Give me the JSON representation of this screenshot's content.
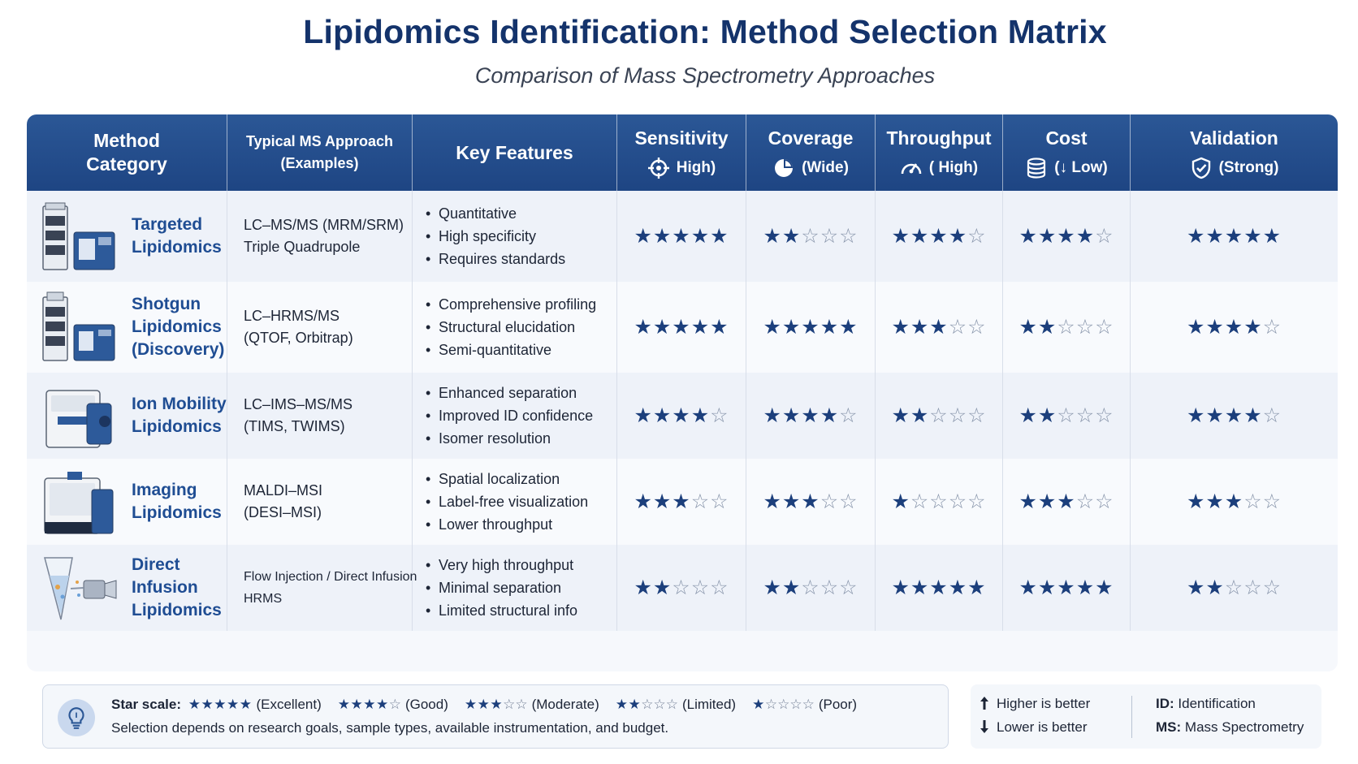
{
  "header": {
    "title": "Lipidomics Identification: Method Selection Matrix",
    "subtitle": "Comparison of Mass Spectrometry Approaches"
  },
  "columns": {
    "method": "Method\nCategory",
    "approach": "Typical MS Approach\n(Examples)",
    "features": "Key Features",
    "sensitivity": {
      "label": "Sensitivity",
      "note": "High)",
      "icon": "crosshair-icon"
    },
    "coverage": {
      "label": "Coverage",
      "note": "(Wide)",
      "icon": "pie-chart-icon"
    },
    "throughput": {
      "label": "Throughput",
      "note": "( High)",
      "icon": "speedometer-icon"
    },
    "cost": {
      "label": "Cost",
      "note": "(↓ Low)",
      "icon": "coins-stack-icon"
    },
    "validation": {
      "label": "Validation",
      "note": "(Strong)",
      "icon": "shield-check-icon"
    }
  },
  "rows": [
    {
      "name": "Targeted\nLipidomics",
      "icon": "lc-ms-instrument-icon",
      "approach": [
        "LC–MS/MS (MRM/SRM)",
        "Triple Quadrupole"
      ],
      "features": [
        "Quantitative",
        "High specificity",
        "Requires standards"
      ],
      "ratings": [
        5,
        2,
        4,
        4,
        5
      ]
    },
    {
      "name": "Shotgun\nLipidomics\n(Discovery)",
      "icon": "lc-hrms-instrument-icon",
      "approach": [
        "LC–HRMS/MS",
        "(QTOF, Orbitrap)"
      ],
      "features": [
        "Comprehensive profiling",
        "Structural elucidation",
        "Semi-quantitative"
      ],
      "ratings": [
        5,
        5,
        3,
        2,
        4
      ]
    },
    {
      "name": "Ion Mobility\nLipidomics",
      "icon": "ion-mobility-instrument-icon",
      "approach": [
        "LC–IMS–MS/MS",
        "(TIMS, TWIMS)"
      ],
      "features": [
        "Enhanced separation",
        "Improved ID confidence",
        "Isomer resolution"
      ],
      "ratings": [
        4,
        4,
        2,
        2,
        4
      ]
    },
    {
      "name": "Imaging\nLipidomics",
      "icon": "maldi-imaging-instrument-icon",
      "approach": [
        "MALDI–MSI",
        "(DESI–MSI)"
      ],
      "features": [
        "Spatial localization",
        "Label-free visualization",
        "Lower throughput"
      ],
      "ratings": [
        3,
        3,
        1,
        3,
        3
      ]
    },
    {
      "name": "Direct Infusion\nLipidomics",
      "icon": "direct-infusion-tube-icon",
      "approach": [
        "Flow Injection / Direct Infusion",
        "HRMS"
      ],
      "features": [
        "Very high throughput",
        "Minimal separation",
        "Limited structural info"
      ],
      "ratings": [
        2,
        2,
        5,
        5,
        2
      ]
    }
  ],
  "legend": {
    "label": "Star scale:",
    "levels": [
      {
        "stars": 5,
        "text": "(Excellent)"
      },
      {
        "stars": 4,
        "text": "(Good)"
      },
      {
        "stars": 3,
        "text": "(Moderate)"
      },
      {
        "stars": 2,
        "text": "(Limited)"
      },
      {
        "stars": 1,
        "text": "(Poor)"
      }
    ],
    "note": "Selection depends on research goals, sample types, available instrumentation, and budget."
  },
  "key": {
    "higher": "Higher is better",
    "lower": "Lower is better",
    "id_abbr": "ID:",
    "id_text": "Identification",
    "ms_abbr": "MS:",
    "ms_text": "Mass Spectrometry"
  },
  "colors": {
    "header": "#1e4583",
    "accent": "#1f4d93",
    "star": "#1c3f7c"
  }
}
